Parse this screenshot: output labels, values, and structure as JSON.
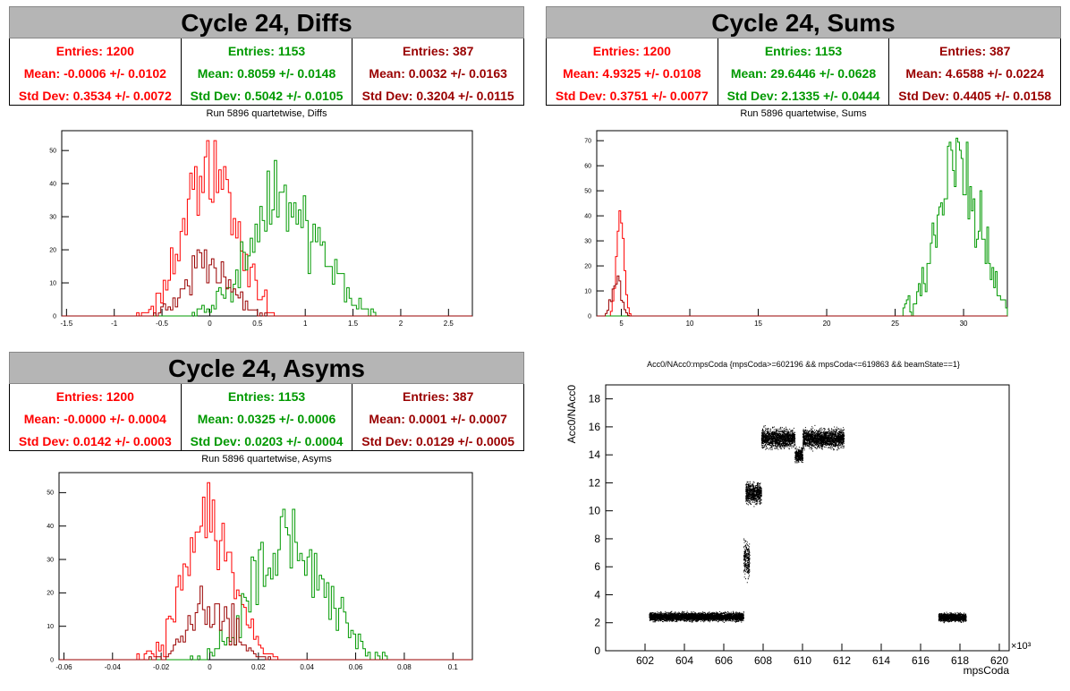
{
  "colors": {
    "red": "#ff0000",
    "green": "#009900",
    "darkred": "#990000",
    "title_bg": "#b5b5b5"
  },
  "panels": {
    "diffs": {
      "title": "Cycle 24, Diffs",
      "stats": [
        {
          "entries": "Entries: 1200",
          "mean": "Mean: -0.0006 +/- 0.0102",
          "std": "Std Dev: 0.3534 +/- 0.0072"
        },
        {
          "entries": "Entries: 1153",
          "mean": "Mean: 0.8059 +/- 0.0148",
          "std": "Std Dev: 0.5042 +/- 0.0105"
        },
        {
          "entries": "Entries: 387",
          "mean": "Mean: 0.0032 +/- 0.0163",
          "std": "Std Dev: 0.3204 +/- 0.0115"
        }
      ],
      "subtitle": "Run 5896 quartetwise, Diffs"
    },
    "sums": {
      "title": "Cycle 24, Sums",
      "stats": [
        {
          "entries": "Entries: 1200",
          "mean": "Mean: 4.9325 +/- 0.0108",
          "std": "Std Dev: 0.3751 +/- 0.0077"
        },
        {
          "entries": "Entries: 1153",
          "mean": "Mean: 29.6446 +/- 0.0628",
          "std": "Std Dev: 2.1335 +/- 0.0444"
        },
        {
          "entries": "Entries: 387",
          "mean": "Mean: 4.6588 +/- 0.0224",
          "std": "Std Dev: 0.4405 +/- 0.0158"
        }
      ],
      "subtitle": "Run 5896 quartetwise, Sums"
    },
    "asyms": {
      "title": "Cycle 24, Asyms",
      "stats": [
        {
          "entries": "Entries: 1200",
          "mean": "Mean: -0.0000 +/- 0.0004",
          "std": "Std Dev: 0.0142 +/- 0.0003"
        },
        {
          "entries": "Entries: 1153",
          "mean": "Mean: 0.0325 +/- 0.0006",
          "std": "Std Dev: 0.0203 +/- 0.0004"
        },
        {
          "entries": "Entries: 387",
          "mean": "Mean: 0.0001 +/- 0.0007",
          "std": "Std Dev: 0.0129 +/- 0.0005"
        }
      ],
      "subtitle": "Run 5896 quartetwise, Asyms"
    },
    "scatter": {
      "title": "Acc0/NAcc0:mpsCoda {mpsCoda>=602196 && mpsCoda<=619863 && beamState==1}"
    }
  },
  "chart_data": [
    {
      "type": "histogram",
      "title": "Run 5896 quartetwise, Diffs",
      "xlim": [
        -1.55,
        2.75
      ],
      "ylim": [
        0,
        56
      ],
      "xticks": [
        "-1.5",
        "-1",
        "-0.5",
        "0",
        "0.5",
        "1",
        "1.5",
        "2",
        "2.5"
      ],
      "xtick_values": [
        -1.5,
        -1,
        -0.5,
        0,
        0.5,
        1,
        1.5,
        2,
        2.5
      ],
      "yticks": [
        "0",
        "10",
        "20",
        "30",
        "40",
        "50"
      ],
      "ytick_values": [
        0,
        10,
        20,
        30,
        40,
        50
      ],
      "series": [
        {
          "color": "red",
          "entries": 1200,
          "mean": -0.0006,
          "std": 0.3534,
          "peak": 53
        },
        {
          "color": "green",
          "entries": 1153,
          "mean": 0.8059,
          "std": 0.5042,
          "peak": 47
        },
        {
          "color": "darkred",
          "entries": 387,
          "mean": 0.0032,
          "std": 0.3204,
          "peak": 20
        }
      ]
    },
    {
      "type": "histogram",
      "title": "Run 5896 quartetwise, Sums",
      "xlim": [
        3.2,
        33.2
      ],
      "ylim": [
        0,
        74
      ],
      "xticks": [
        "5",
        "10",
        "15",
        "20",
        "25",
        "30"
      ],
      "xtick_values": [
        5,
        10,
        15,
        20,
        25,
        30
      ],
      "yticks": [
        "0",
        "10",
        "20",
        "30",
        "40",
        "50",
        "60",
        "70"
      ],
      "ytick_values": [
        0,
        10,
        20,
        30,
        40,
        50,
        60,
        70
      ],
      "series": [
        {
          "color": "red",
          "entries": 1200,
          "mean": 4.9325,
          "std": 0.3751,
          "peak": 42
        },
        {
          "color": "green",
          "entries": 1153,
          "mean": 29.6446,
          "std": 2.1335,
          "peak": 71
        },
        {
          "color": "darkred",
          "entries": 387,
          "mean": 4.6588,
          "std": 0.4405,
          "peak": 16
        }
      ]
    },
    {
      "type": "histogram",
      "title": "Run 5896 quartetwise, Asyms",
      "xlim": [
        -0.062,
        0.108
      ],
      "ylim": [
        0,
        56
      ],
      "xticks": [
        "-0.06",
        "-0.04",
        "-0.02",
        "0",
        "0.02",
        "0.04",
        "0.06",
        "0.08",
        "0.1"
      ],
      "xtick_values": [
        -0.06,
        -0.04,
        -0.02,
        0,
        0.02,
        0.04,
        0.06,
        0.08,
        0.1
      ],
      "yticks": [
        "0",
        "10",
        "20",
        "30",
        "40",
        "50"
      ],
      "ytick_values": [
        0,
        10,
        20,
        30,
        40,
        50
      ],
      "series": [
        {
          "color": "red",
          "entries": 1200,
          "mean": 0.0,
          "std": 0.0142,
          "peak": 53
        },
        {
          "color": "green",
          "entries": 1153,
          "mean": 0.0325,
          "std": 0.0203,
          "peak": 45
        },
        {
          "color": "darkred",
          "entries": 387,
          "mean": 0.0001,
          "std": 0.0129,
          "peak": 22
        }
      ]
    },
    {
      "type": "scatter",
      "title": "Acc0/NAcc0:mpsCoda {mpsCoda>=602196 && mpsCoda<=619863 && beamState==1}",
      "xlabel": "mpsCoda",
      "ylabel": "Acc0/NAcc0",
      "x_multiplier": "×10³",
      "xlim": [
        600,
        620.5
      ],
      "ylim": [
        0,
        19
      ],
      "xticks": [
        "602",
        "604",
        "606",
        "608",
        "610",
        "612",
        "614",
        "616",
        "618",
        "620"
      ],
      "xtick_values": [
        602,
        604,
        606,
        608,
        610,
        612,
        614,
        616,
        618,
        620
      ],
      "yticks": [
        "0",
        "2",
        "4",
        "6",
        "8",
        "10",
        "12",
        "14",
        "16",
        "18"
      ],
      "ytick_values": [
        0,
        2,
        4,
        6,
        8,
        10,
        12,
        14,
        16,
        18
      ],
      "clusters": [
        {
          "x": [
            602.2,
            607.0
          ],
          "y_mean": 2.45,
          "y_spread": 0.35
        },
        {
          "x": [
            607.0,
            607.3
          ],
          "y_mean": 6.5,
          "y_spread": 1.5
        },
        {
          "x": [
            607.1,
            607.9
          ],
          "y_mean": 11.3,
          "y_spread": 0.9
        },
        {
          "x": [
            607.9,
            609.6
          ],
          "y_mean": 15.2,
          "y_spread": 0.8
        },
        {
          "x": [
            609.6,
            610.0
          ],
          "y_mean": 14.0,
          "y_spread": 0.6
        },
        {
          "x": [
            610.0,
            612.1
          ],
          "y_mean": 15.2,
          "y_spread": 0.8
        },
        {
          "x": [
            616.9,
            618.3
          ],
          "y_mean": 2.4,
          "y_spread": 0.35
        }
      ]
    }
  ]
}
